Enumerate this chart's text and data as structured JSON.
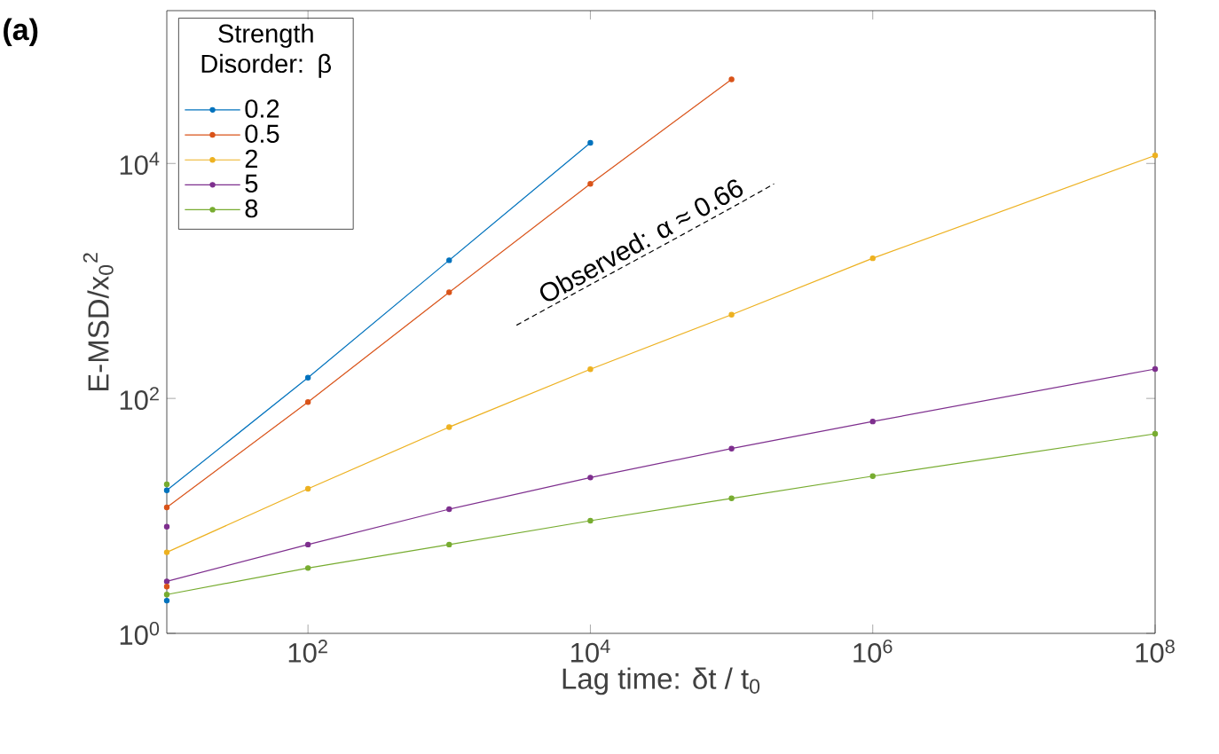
{
  "chart_data": {
    "type": "line",
    "title": "(a)",
    "xlabel": "Lag time: δt / t$_{0}$",
    "ylabel": "E-MSD/x$_{0}$$^{2}$",
    "legend_title": "Strength Disorder: β",
    "legend": "top left",
    "marker": "circle",
    "log": "xy",
    "grid": false,
    "xlim": [
      10,
      100000000
    ],
    "ylim": [
      1,
      200000
    ],
    "xticks": [
      {
        "value": 100,
        "label": "10$^{2}$"
      },
      {
        "value": 10000,
        "label": "10$^{4}$"
      },
      {
        "value": 1000000,
        "label": "10$^{6}$"
      },
      {
        "value": 100000000,
        "label": "10$^{8}$"
      }
    ],
    "yticks": [
      {
        "value": 1,
        "label": "10$^{0}$"
      },
      {
        "value": 100,
        "label": "10$^{2}$"
      },
      {
        "value": 10000,
        "label": "10$^{4}$"
      }
    ],
    "series": [
      {
        "name": "0.2",
        "color": "#0072bd",
        "x": [
          10,
          100,
          1000,
          10000
        ],
        "values": [
          16.5,
          150,
          1500,
          15000
        ]
      },
      {
        "name": "0.5",
        "color": "#d95319",
        "x": [
          10,
          100,
          1000,
          10000,
          100000
        ],
        "values": [
          11.8,
          93,
          800,
          6700,
          52000
        ]
      },
      {
        "name": "2",
        "color": "#edb120",
        "x": [
          10,
          100,
          1000,
          10000,
          100000,
          1000000,
          100000000
        ],
        "values": [
          4.9,
          17,
          57,
          177,
          516,
          1560,
          11700
        ]
      },
      {
        "name": "5",
        "color": "#7e2f8e",
        "x": [
          10,
          100,
          1000,
          10000,
          100000,
          1000000,
          100000000
        ],
        "values": [
          2.77,
          5.7,
          11.4,
          21.2,
          37.4,
          63.6,
          178
        ]
      },
      {
        "name": "8",
        "color": "#77ac30",
        "x": [
          10,
          100,
          1000,
          10000,
          100000,
          1000000,
          100000000
        ],
        "values": [
          2.14,
          3.6,
          5.7,
          9.1,
          14.1,
          21.8,
          50
        ]
      },
      {
        "type": "scatter",
        "color": "#0072bd",
        "x": [
          10
        ],
        "values": [
          1.9
        ]
      },
      {
        "type": "scatter",
        "color": "#d95319",
        "x": [
          10
        ],
        "values": [
          2.5
        ]
      },
      {
        "type": "scatter",
        "color": "#7e2f8e",
        "x": [
          10
        ],
        "values": [
          8.1
        ]
      },
      {
        "type": "scatter",
        "color": "#77ac30",
        "x": [
          10
        ],
        "values": [
          18.6
        ]
      },
      {
        "type": "line",
        "color": "#000000",
        "marker": "none",
        "line_style": "dashed",
        "x": [
          3000,
          10000,
          30000,
          100000,
          200000
        ],
        "values": [
          420,
          930,
          1900,
          4200,
          6700
        ]
      }
    ],
    "annotations": [
      {
        "text": "Observed: α ≈ 0.66",
        "x": 25000,
        "y": 1800
      }
    ]
  }
}
